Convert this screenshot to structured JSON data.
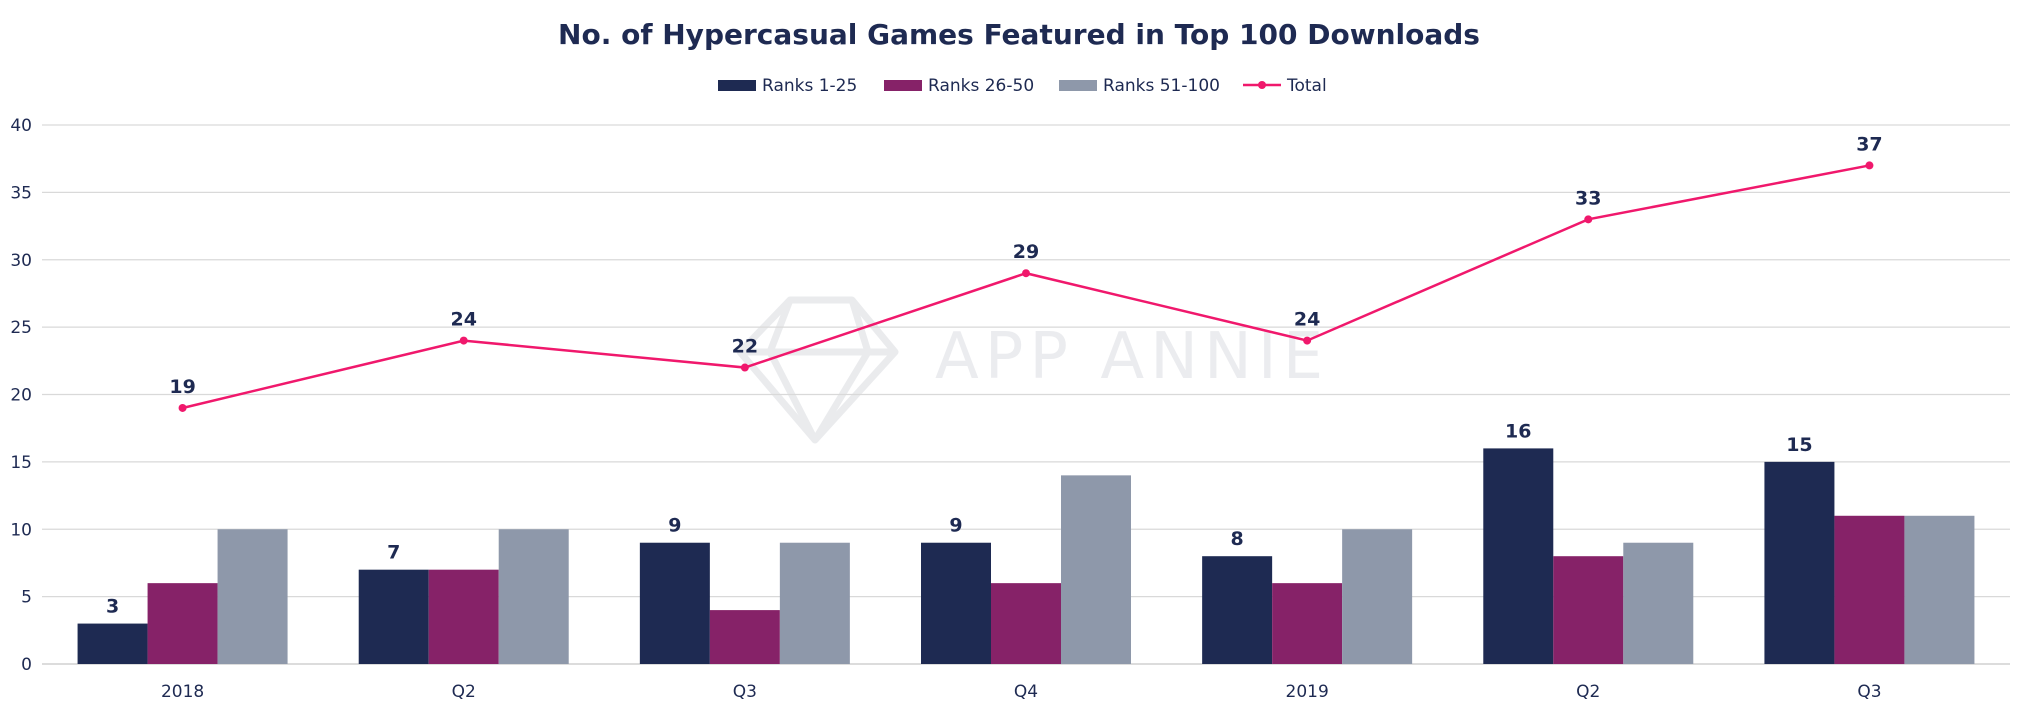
{
  "chart_data": {
    "type": "bar",
    "title": "No. of Hypercasual Games Featured in Top 100 Downloads",
    "categories": [
      "2018",
      "Q2",
      "Q3",
      "Q4",
      "2019",
      "Q2",
      "Q3"
    ],
    "ylim": [
      0,
      40
    ],
    "yticks": [
      0,
      5,
      10,
      15,
      20,
      25,
      30,
      35,
      40
    ],
    "grid": true,
    "legend_position": "top-center",
    "series": [
      {
        "name": "Ranks 1-25",
        "kind": "bar",
        "color": "#1e2a52",
        "values": [
          3,
          7,
          9,
          9,
          8,
          16,
          15
        ],
        "labeled": true
      },
      {
        "name": "Ranks 26-50",
        "kind": "bar",
        "color": "#862268",
        "values": [
          6,
          7,
          4,
          6,
          6,
          8,
          11
        ],
        "labeled": false
      },
      {
        "name": "Ranks 51-100",
        "kind": "bar",
        "color": "#8e98aa",
        "values": [
          10,
          10,
          9,
          14,
          10,
          9,
          11
        ],
        "labeled": false
      },
      {
        "name": "Total",
        "kind": "line",
        "color": "#f0186c",
        "values": [
          19,
          24,
          22,
          29,
          24,
          33,
          37
        ],
        "labeled": true
      }
    ],
    "watermark": "APP ANNIE"
  }
}
